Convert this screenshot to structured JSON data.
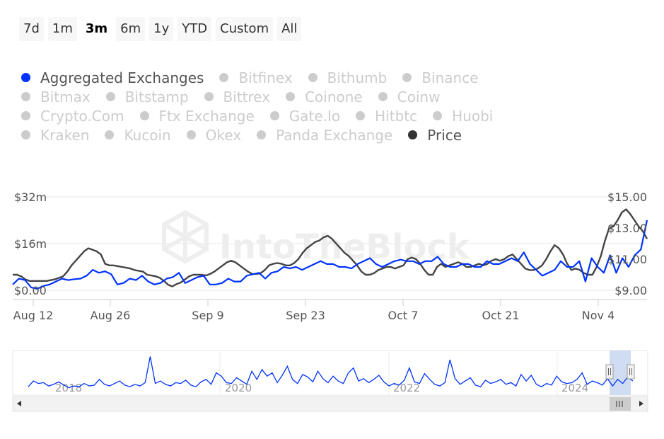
{
  "range_buttons": [
    "7d",
    "1m",
    "3m",
    "6m",
    "1y",
    "YTD",
    "Custom",
    "All"
  ],
  "active_range": "3m",
  "legend_rows": [
    [
      {
        "label": "Aggregated Exchanges",
        "color": "#0033ff",
        "on": true
      },
      {
        "label": "Bitfinex",
        "on": false
      },
      {
        "label": "Bithumb",
        "on": false
      },
      {
        "label": "Binance",
        "on": false
      }
    ],
    [
      {
        "label": "Bitmax",
        "on": false
      },
      {
        "label": "Bitstamp",
        "on": false
      },
      {
        "label": "Bittrex",
        "on": false
      },
      {
        "label": "Coinone",
        "on": false
      },
      {
        "label": "Coinw",
        "on": false
      }
    ],
    [
      {
        "label": "Crypto.Com",
        "on": false
      },
      {
        "label": "Ftx Exchange",
        "on": false
      },
      {
        "label": "Gate.Io",
        "on": false
      },
      {
        "label": "Hitbtc",
        "on": false
      },
      {
        "label": "Huobi",
        "on": false
      }
    ],
    [
      {
        "label": "Kraken",
        "on": false
      },
      {
        "label": "Kucoin",
        "on": false
      },
      {
        "label": "Okex",
        "on": false
      },
      {
        "label": "Panda Exchange",
        "on": false
      },
      {
        "label": "Price",
        "color": "#333333",
        "on": true
      }
    ]
  ],
  "watermark": "IntoTheBlock",
  "colors": {
    "volume": "#0033ff",
    "price": "#444444",
    "navigator_mask": "#c8d6f0"
  },
  "chart_data": {
    "type": "line",
    "x_start": "Aug 12",
    "x_end": "Nov 11",
    "x_ticks": [
      "Aug 12",
      "Aug 26",
      "Sep 9",
      "Sep 23",
      "Oct 7",
      "Oct 21",
      "Nov 4"
    ],
    "y_left": {
      "ticks": [
        "$0.00",
        "$16m",
        "$32m"
      ],
      "range": [
        0,
        32
      ]
    },
    "y_right": {
      "ticks": [
        "$9.00",
        "$11.00",
        "$13.00",
        "$15.00"
      ],
      "range": [
        9,
        15
      ]
    },
    "series": [
      {
        "name": "Aggregated Exchanges",
        "axis": "left",
        "unit": "$m",
        "color": "#0033ff",
        "values": [
          2,
          4,
          3.5,
          1,
          0.5,
          1.5,
          2,
          3,
          4,
          3.5,
          3.8,
          4,
          5,
          7,
          6,
          6.5,
          5.5,
          2,
          2.5,
          4,
          3.5,
          5,
          3,
          2,
          2.5,
          4,
          4.5,
          6,
          2.5,
          3.5,
          4.5,
          5,
          2,
          2,
          2.5,
          4,
          3,
          3,
          5,
          5.5,
          6,
          4,
          6,
          6.5,
          8,
          7.5,
          8,
          7,
          8,
          9,
          10,
          9,
          9,
          8,
          8,
          7.5,
          9,
          10,
          11,
          9,
          8,
          9,
          10,
          10.5,
          10,
          10,
          9,
          10,
          10,
          11.5,
          9,
          8,
          8,
          9,
          9,
          8,
          8,
          10,
          9,
          9,
          10,
          11,
          10,
          13,
          9,
          7,
          5,
          6,
          7,
          10,
          8,
          8,
          10,
          3,
          11,
          8,
          6,
          12,
          6,
          11,
          8,
          12,
          14,
          24
        ]
      },
      {
        "name": "Price",
        "axis": "right",
        "unit": "$",
        "color": "#444444",
        "values": [
          10.0,
          10.0,
          9.9,
          9.7,
          9.6,
          9.6,
          9.6,
          9.6,
          9.6,
          9.65,
          9.7,
          9.8,
          9.9,
          10.2,
          10.6,
          10.9,
          11.2,
          11.5,
          11.7,
          11.6,
          11.5,
          11.3,
          10.7,
          10.6,
          10.6,
          10.55,
          10.5,
          10.45,
          10.4,
          10.3,
          10.25,
          10.2,
          10.0,
          9.95,
          9.9,
          9.8,
          9.6,
          9.35,
          9.25,
          9.4,
          9.5,
          9.7,
          9.9,
          10.0,
          10.0,
          10.0,
          9.95,
          10.05,
          10.2,
          10.4,
          10.6,
          10.8,
          10.9,
          10.8,
          10.6,
          10.4,
          10.2,
          10.05,
          10.05,
          10.1,
          10.3,
          10.6,
          10.7,
          10.75,
          10.7,
          10.6,
          10.6,
          10.75,
          11.0,
          11.4,
          11.7,
          11.9,
          12.1,
          12.2,
          12.4,
          12.5,
          12.3,
          12.0,
          11.7,
          11.4,
          11.2,
          10.9,
          10.6,
          10.2,
          10.0,
          10.0,
          10.1,
          10.3,
          10.4,
          10.5,
          10.5,
          10.4,
          10.5,
          10.6,
          11.0,
          11.1,
          11.0,
          10.7,
          10.3,
          10.0,
          10.0,
          10.5,
          10.7,
          10.5,
          10.6,
          10.7,
          10.8,
          10.7,
          10.5,
          10.5,
          10.6,
          10.7,
          10.6,
          10.7,
          10.9,
          11.0,
          10.9,
          11.0,
          11.2,
          11.3,
          11.0,
          10.7,
          10.4,
          10.3,
          10.3,
          10.4,
          10.6,
          11.0,
          11.5,
          11.9,
          11.7,
          11.3,
          10.7,
          10.3,
          10.4,
          10.3,
          10.1,
          10.0,
          10.0,
          10.5,
          11.2,
          12.2,
          13.0,
          13.1,
          13.5,
          14.0,
          14.2,
          13.9,
          13.5,
          13.1,
          12.8,
          12.3
        ]
      }
    ],
    "navigator": {
      "x_ticks": [
        "2018",
        "2020",
        "2022",
        "2024"
      ],
      "values": [
        5,
        12,
        9,
        10,
        6,
        8,
        11,
        7,
        4,
        6,
        5,
        9,
        6,
        7,
        14,
        8,
        6,
        9,
        12,
        7,
        5,
        8,
        6,
        10,
        42,
        9,
        12,
        8,
        6,
        10,
        9,
        13,
        7,
        5,
        11,
        14,
        8,
        22,
        18,
        10,
        9,
        16,
        12,
        8,
        24,
        14,
        26,
        18,
        22,
        10,
        19,
        30,
        14,
        9,
        20,
        17,
        11,
        24,
        15,
        10,
        18,
        12,
        9,
        22,
        28,
        12,
        15,
        10,
        14,
        19,
        11,
        6,
        9,
        7,
        13,
        28,
        11,
        9,
        21,
        14,
        8,
        6,
        10,
        38,
        15,
        8,
        12,
        16,
        7,
        5,
        13,
        9,
        11,
        14,
        8,
        10,
        6,
        20,
        12,
        19,
        8,
        5,
        9,
        7,
        18,
        11,
        9,
        10,
        14,
        22,
        8,
        12,
        10,
        7,
        15,
        6,
        14,
        9,
        17,
        12
      ]
    },
    "grid": true
  }
}
